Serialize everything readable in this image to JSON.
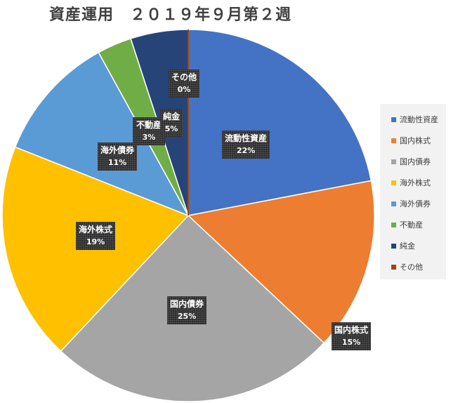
{
  "chart_data": {
    "type": "pie",
    "title": "資産運用　２０１９年９月第２週",
    "categories": [
      "流動性資産",
      "国内株式",
      "国内債券",
      "海外株式",
      "海外債券",
      "不動産",
      "純金",
      "その他"
    ],
    "values": [
      22,
      15,
      25,
      19,
      11,
      3,
      5,
      0
    ],
    "value_labels": [
      "22%",
      "15%",
      "25%",
      "19%",
      "11%",
      "3%",
      "5%",
      "0%"
    ],
    "slice_labels": [
      "流動性資産",
      "国内株式",
      "国内債券",
      "海外株式",
      "海外債券",
      "不動産",
      "純金",
      "その他"
    ],
    "colors": [
      "#4472c4",
      "#ed7d31",
      "#a5a5a5",
      "#ffc000",
      "#5b9bd5",
      "#70ad47",
      "#264478",
      "#9e480e"
    ],
    "legend_position": "right",
    "start_angle": "12 o'clock, clockwise"
  }
}
